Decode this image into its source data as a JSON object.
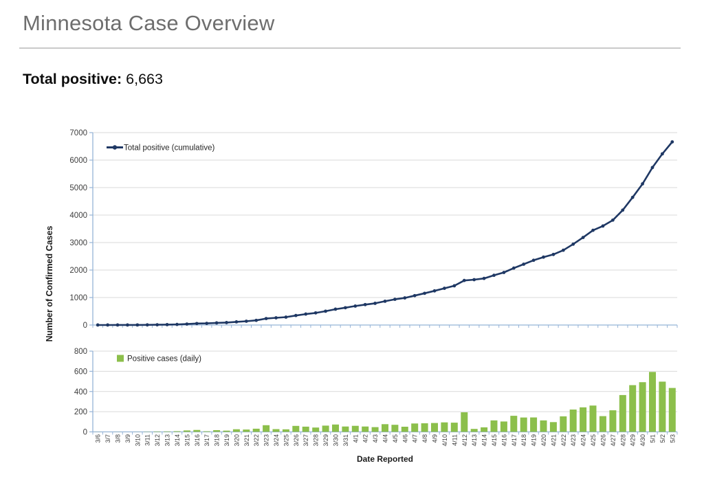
{
  "header": {
    "title": "Minnesota Case Overview"
  },
  "summary": {
    "label": "Total positive:",
    "value": "6,663"
  },
  "colors": {
    "line": "#1f3864",
    "bar": "#8cbf4b",
    "axis": "#95b3d7",
    "grid": "#d9d9d9",
    "tick_text": "#3d3d3d",
    "legend_text": "#262626",
    "title_text": "#1a1a1a"
  },
  "chart_data": [
    {
      "type": "line",
      "title": "",
      "x": [
        "3/6",
        "3/7",
        "3/8",
        "3/9",
        "3/10",
        "3/11",
        "3/12",
        "3/13",
        "3/14",
        "3/15",
        "3/16",
        "3/17",
        "3/18",
        "3/19",
        "3/20",
        "3/21",
        "3/22",
        "3/23",
        "3/24",
        "3/25",
        "3/26",
        "3/27",
        "3/28",
        "3/29",
        "3/30",
        "3/31",
        "4/1",
        "4/2",
        "4/3",
        "4/4",
        "4/5",
        "4/6",
        "4/7",
        "4/8",
        "4/9",
        "4/10",
        "4/11",
        "4/12",
        "4/13",
        "4/14",
        "4/15",
        "4/16",
        "4/17",
        "4/18",
        "4/19",
        "4/20",
        "4/21",
        "4/22",
        "4/23",
        "4/24",
        "4/25",
        "4/26",
        "4/27",
        "4/28",
        "4/29",
        "4/30",
        "5/1",
        "5/2",
        "5/3"
      ],
      "series": [
        {
          "name": "Total positive (cumulative)",
          "values": [
            1,
            1,
            2,
            2,
            3,
            5,
            9,
            14,
            21,
            35,
            54,
            60,
            77,
            89,
            115,
            138,
            169,
            235,
            262,
            287,
            346,
            398,
            441,
            503,
            576,
            629,
            689,
            742,
            789,
            865,
            935,
            986,
            1069,
            1154,
            1242,
            1336,
            1427,
            1621,
            1650,
            1695,
            1809,
            1912,
            2071,
            2213,
            2356,
            2470,
            2567,
            2721,
            2942,
            3185,
            3446,
            3602,
            3816,
            4181,
            4644,
            5136,
            5730,
            6228,
            6663
          ]
        }
      ],
      "xlabel": "",
      "ylabel": "Number of Confirmed Cases",
      "ylim": [
        0,
        7000
      ],
      "ytick_step": 1000,
      "grid": true,
      "legend_position": "top-left-inside",
      "line_color": "#1f3864"
    },
    {
      "type": "bar",
      "title": "",
      "categories": [
        "3/6",
        "3/7",
        "3/8",
        "3/9",
        "3/10",
        "3/11",
        "3/12",
        "3/13",
        "3/14",
        "3/15",
        "3/16",
        "3/17",
        "3/18",
        "3/19",
        "3/20",
        "3/21",
        "3/22",
        "3/23",
        "3/24",
        "3/25",
        "3/26",
        "3/27",
        "3/28",
        "3/29",
        "3/30",
        "3/31",
        "4/1",
        "4/2",
        "4/3",
        "4/4",
        "4/5",
        "4/6",
        "4/7",
        "4/8",
        "4/9",
        "4/10",
        "4/11",
        "4/12",
        "4/13",
        "4/14",
        "4/15",
        "4/16",
        "4/17",
        "4/18",
        "4/19",
        "4/20",
        "4/21",
        "4/22",
        "4/23",
        "4/24",
        "4/25",
        "4/26",
        "4/27",
        "4/28",
        "4/29",
        "4/30",
        "5/1",
        "5/2",
        "5/3"
      ],
      "series": [
        {
          "name": "Positive cases (daily)",
          "values": [
            1,
            0,
            1,
            0,
            1,
            2,
            4,
            5,
            7,
            14,
            19,
            6,
            17,
            12,
            26,
            23,
            31,
            66,
            27,
            25,
            59,
            52,
            43,
            62,
            73,
            53,
            60,
            53,
            47,
            76,
            70,
            51,
            83,
            85,
            88,
            94,
            91,
            194,
            29,
            45,
            114,
            103,
            159,
            142,
            143,
            114,
            97,
            154,
            221,
            243,
            261,
            156,
            214,
            365,
            463,
            492,
            594,
            498,
            435
          ]
        }
      ],
      "xlabel": "Date Reported",
      "ylabel": "",
      "ylim": [
        0,
        800
      ],
      "ytick_step": 200,
      "grid": true,
      "legend_position": "top-left-inside",
      "bar_color": "#8cbf4b"
    }
  ]
}
